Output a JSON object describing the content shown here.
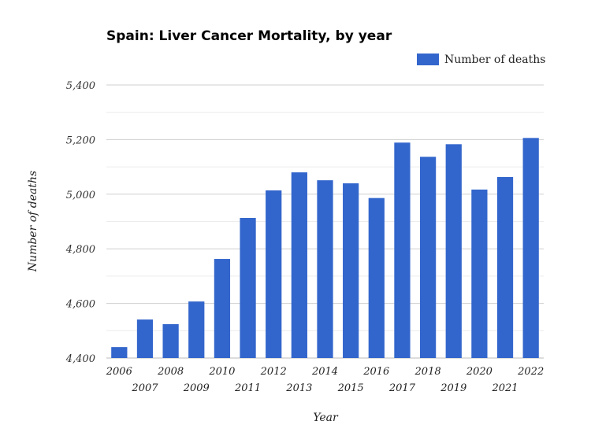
{
  "chart_data": {
    "type": "bar",
    "title": "Spain: Liver Cancer Mortality, by year",
    "xlabel": "Year",
    "ylabel": "Number of deaths",
    "ylim": [
      4400,
      5400
    ],
    "yticks": [
      "4,400",
      "4,600",
      "4,800",
      "5,000",
      "5,200",
      "5,400"
    ],
    "grid": true,
    "legend_position": "top-right",
    "bar_color": "#3366cc",
    "categories": [
      "2006",
      "2007",
      "2008",
      "2009",
      "2010",
      "2011",
      "2012",
      "2013",
      "2014",
      "2015",
      "2016",
      "2017",
      "2018",
      "2019",
      "2020",
      "2021",
      "2022"
    ],
    "series": [
      {
        "name": "Number of deaths",
        "values": [
          4440,
          4541,
          4524,
          4607,
          4763,
          4913,
          5014,
          5080,
          5051,
          5040,
          4986,
          5189,
          5137,
          5183,
          5017,
          5063,
          5206
        ]
      }
    ]
  }
}
